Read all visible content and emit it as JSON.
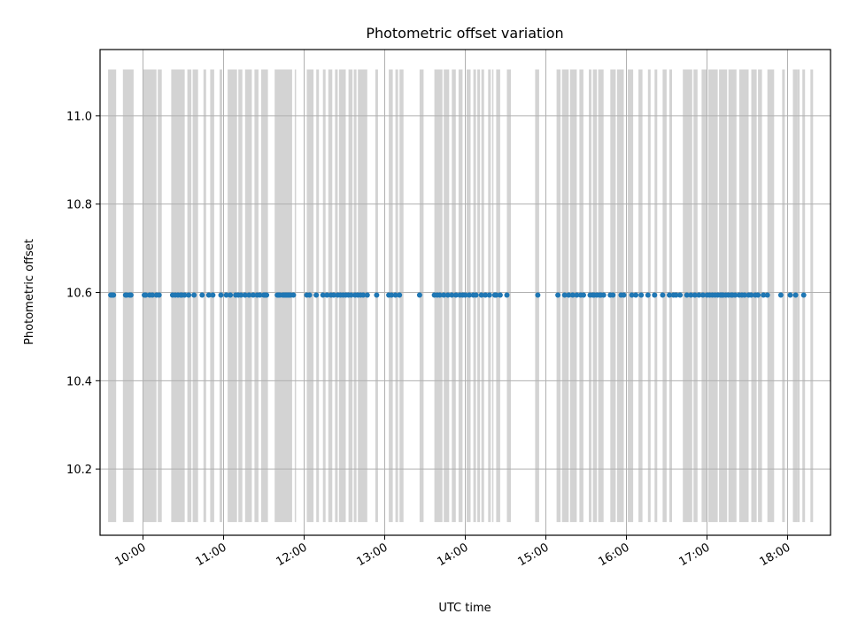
{
  "chart_data": {
    "type": "scatter",
    "title": "Photometric offset variation",
    "xlabel": "UTC time",
    "ylabel": "Photometric offset",
    "x_axis_type": "time",
    "xlim": [
      "09:28",
      "18:32"
    ],
    "ylim": [
      10.05,
      11.15
    ],
    "grid": true,
    "x_ticks": [
      "10:00",
      "11:00",
      "12:00",
      "13:00",
      "14:00",
      "15:00",
      "16:00",
      "17:00",
      "18:00"
    ],
    "y_ticks": [
      "10.2",
      "10.4",
      "10.6",
      "10.8",
      "11.0"
    ],
    "colors": {
      "points": "#1f77b4",
      "bands": "#d3d3d3",
      "grid": "#b0b0b0"
    },
    "bands_y_range": [
      10.08,
      11.105
    ],
    "bands": [
      [
        "09:34",
        "09:39"
      ],
      [
        "09:45",
        "09:53"
      ],
      [
        "10:00",
        "10:04"
      ],
      [
        "10:06",
        "10:09"
      ],
      [
        "10:11",
        "10:13"
      ],
      [
        "10:21",
        "10:23"
      ],
      [
        "10:25",
        "10:27"
      ],
      [
        "10:29",
        "10:31"
      ],
      [
        "10:33",
        "10:35"
      ],
      [
        "10:38",
        "10:40"
      ],
      [
        "10:44",
        "10:46"
      ],
      [
        "10:51",
        "10:53"
      ],
      [
        "10:57",
        "10:59"
      ],
      [
        "11:04",
        "11:06"
      ],
      [
        "11:09",
        "11:11"
      ],
      [
        "11:13",
        "11:16"
      ],
      [
        "11:18",
        "11:20"
      ],
      [
        "11:25",
        "11:27"
      ],
      [
        "11:29",
        "11:31"
      ],
      [
        "11:32",
        "11:34"
      ],
      [
        "11:37",
        "11:39"
      ],
      [
        "11:41",
        "11:43"
      ],
      [
        "11:45",
        "11:48"
      ],
      [
        "11:50",
        "11:52"
      ],
      [
        "11:59",
        "11:61"
      ],
      [
        "12:02",
        "12:04"
      ],
      [
        "12:06",
        "12:08"
      ],
      [
        "12:10",
        "12:12"
      ],
      [
        "12:14",
        "12:16"
      ],
      [
        "12:22",
        "12:24"
      ],
      [
        "12:26",
        "12:28"
      ],
      [
        "12:30",
        "12:32"
      ],
      [
        "12:33",
        "12:36"
      ],
      [
        "12:37",
        "12:39"
      ],
      [
        "12:42",
        "12:44"
      ],
      [
        "12:46",
        "12:48"
      ],
      [
        "13:03",
        "13:05"
      ],
      [
        "13:08",
        "13:10"
      ],
      [
        "13:12",
        "13:14"
      ],
      [
        "13:26",
        "13:28"
      ],
      [
        "13:33",
        "13:35"
      ],
      [
        "13:37",
        "13:39"
      ],
      [
        "13:41",
        "13:43"
      ],
      [
        "13:45",
        "13:47"
      ],
      [
        "13:50",
        "13:52"
      ],
      [
        "13:55",
        "13:57"
      ],
      [
        "14:01",
        "14:03"
      ],
      [
        "14:05",
        "14:07"
      ],
      [
        "14:09",
        "14:11"
      ],
      [
        "14:15",
        "14:17"
      ],
      [
        "14:21",
        "14:23"
      ],
      [
        "14:26",
        "14:28"
      ],
      [
        "14:33",
        "14:35"
      ],
      [
        "14:52",
        "14:54"
      ],
      [
        "15:09",
        "15:11"
      ],
      [
        "15:14",
        "15:16"
      ],
      [
        "15:18",
        "15:20"
      ],
      [
        "15:22",
        "15:24"
      ],
      [
        "15:28",
        "15:30"
      ],
      [
        "15:33",
        "15:35"
      ],
      [
        "15:39",
        "15:41"
      ],
      [
        "15:43",
        "15:45"
      ],
      [
        "15:51",
        "15:53"
      ],
      [
        "15:56",
        "15:58"
      ],
      [
        "16:03",
        "16:05"
      ],
      [
        "16:09",
        "16:11"
      ],
      [
        "16:15",
        "16:17"
      ],
      [
        "16:21",
        "16:23"
      ],
      [
        "16:26",
        "16:28"
      ],
      [
        "16:33",
        "16:35"
      ],
      [
        "16:43",
        "16:45"
      ],
      [
        "16:47",
        "16:49"
      ],
      [
        "16:51",
        "16:53"
      ],
      [
        "17:01",
        "17:03"
      ],
      [
        "17:05",
        "17:07"
      ],
      [
        "17:08",
        "17:10"
      ],
      [
        "17:12",
        "17:14"
      ],
      [
        "17:16",
        "17:18"
      ],
      [
        "17:20",
        "17:22"
      ],
      [
        "17:23",
        "17:25"
      ],
      [
        "17:27",
        "17:29"
      ],
      [
        "17:33",
        "17:35"
      ],
      [
        "17:39",
        "17:41"
      ],
      [
        "17:45",
        "17:47"
      ],
      [
        "17:59",
        "17:61"
      ]
    ],
    "bands_wide": [
      [
        "09:34",
        "09:40"
      ],
      [
        "09:45",
        "09:53"
      ],
      [
        "10:00",
        "10:10"
      ],
      [
        "10:11",
        "10:14"
      ],
      [
        "10:21",
        "10:31"
      ],
      [
        "10:33",
        "10:36"
      ],
      [
        "10:37",
        "10:41"
      ],
      [
        "10:45",
        "10:47"
      ],
      [
        "10:50",
        "10:53"
      ],
      [
        "10:57",
        "10:59"
      ],
      [
        "11:03",
        "11:10"
      ],
      [
        "11:11",
        "11:14"
      ],
      [
        "11:16",
        "11:21"
      ],
      [
        "11:23",
        "11:26"
      ],
      [
        "11:28",
        "11:33"
      ],
      [
        "11:38",
        "11:51"
      ],
      [
        "11:53",
        "11:54"
      ],
      [
        "12:02",
        "12:07"
      ],
      [
        "12:09",
        "12:11"
      ],
      [
        "12:14",
        "12:16"
      ],
      [
        "12:18",
        "12:21"
      ],
      [
        "12:23",
        "12:25"
      ],
      [
        "12:26",
        "12:31"
      ],
      [
        "12:33",
        "12:36"
      ],
      [
        "12:37",
        "12:39"
      ],
      [
        "12:40",
        "12:47"
      ],
      [
        "12:53",
        "12:55"
      ],
      [
        "13:03",
        "13:06"
      ],
      [
        "13:08",
        "13:10"
      ],
      [
        "13:11",
        "13:14"
      ],
      [
        "13:26",
        "13:29"
      ],
      [
        "13:37",
        "13:43"
      ],
      [
        "13:44",
        "13:48"
      ],
      [
        "13:50",
        "13:53"
      ],
      [
        "13:55",
        "13:58"
      ],
      [
        "14:01",
        "14:04"
      ],
      [
        "14:06",
        "14:08"
      ],
      [
        "14:09",
        "14:11"
      ],
      [
        "14:12",
        "14:14"
      ],
      [
        "14:17",
        "14:19"
      ],
      [
        "14:20",
        "14:21"
      ],
      [
        "14:23",
        "14:26"
      ],
      [
        "14:31",
        "14:34"
      ],
      [
        "14:52",
        "14:55"
      ],
      [
        "15:08",
        "15:11"
      ],
      [
        "15:12",
        "15:17"
      ],
      [
        "15:18",
        "15:23"
      ],
      [
        "15:25",
        "15:28"
      ],
      [
        "15:32",
        "15:34"
      ],
      [
        "15:35",
        "15:38"
      ],
      [
        "15:39",
        "15:43"
      ],
      [
        "15:48",
        "15:52"
      ],
      [
        "15:53",
        "15:58"
      ],
      [
        "16:01",
        "16:05"
      ],
      [
        "16:09",
        "16:12"
      ],
      [
        "16:16",
        "16:18"
      ],
      [
        "16:21",
        "16:23"
      ],
      [
        "16:27",
        "16:30"
      ],
      [
        "16:32",
        "16:34"
      ],
      [
        "16:42",
        "16:49"
      ],
      [
        "16:50",
        "16:53"
      ],
      [
        "16:56",
        "17:00"
      ],
      [
        "17:01",
        "17:08"
      ],
      [
        "17:09",
        "17:15"
      ],
      [
        "17:16",
        "17:22"
      ],
      [
        "17:24",
        "17:31"
      ],
      [
        "17:33",
        "17:37"
      ],
      [
        "17:38",
        "17:41"
      ],
      [
        "17:45",
        "17:50"
      ],
      [
        "17:56",
        "17:58"
      ],
      [
        "18:04",
        "18:07"
      ],
      [
        "18:07",
        "18:09"
      ],
      [
        "18:11",
        "18:13"
      ],
      [
        "18:17",
        "18:19"
      ]
    ],
    "points": {
      "y": 10.594,
      "x": [
        "09:36",
        "09:37",
        "09:38",
        "09:47",
        "09:48",
        "09:50",
        "09:51",
        "10:01",
        "10:02",
        "10:05",
        "10:07",
        "10:10",
        "10:12",
        "10:22",
        "10:24",
        "10:26",
        "10:28",
        "10:29",
        "10:31",
        "10:34",
        "10:38",
        "10:44",
        "10:49",
        "10:52",
        "10:58",
        "11:02",
        "11:05",
        "11:09",
        "11:11",
        "11:13",
        "11:16",
        "11:19",
        "11:22",
        "11:25",
        "11:27",
        "11:30",
        "11:31",
        "11:32",
        "11:40",
        "11:41",
        "11:42",
        "11:44",
        "11:45",
        "11:46",
        "11:47",
        "11:48",
        "11:49",
        "11:50",
        "11:52",
        "12:02",
        "12:04",
        "12:09",
        "12:14",
        "12:17",
        "12:20",
        "12:22",
        "12:25",
        "12:27",
        "12:29",
        "12:31",
        "12:33",
        "12:35",
        "12:38",
        "12:40",
        "12:42",
        "12:44",
        "12:47",
        "12:54",
        "13:03",
        "13:05",
        "13:08",
        "13:11",
        "13:26",
        "13:37",
        "13:39",
        "13:41",
        "13:44",
        "13:47",
        "13:50",
        "13:53",
        "13:56",
        "13:58",
        "14:00",
        "14:03",
        "14:06",
        "14:08",
        "14:12",
        "14:15",
        "14:18",
        "14:22",
        "14:23",
        "14:26",
        "14:31",
        "14:54",
        "15:09",
        "15:14",
        "15:17",
        "15:20",
        "15:23",
        "15:26",
        "15:28",
        "15:33",
        "15:35",
        "15:36",
        "15:38",
        "15:40",
        "15:41",
        "15:43",
        "15:48",
        "15:50",
        "15:56",
        "15:58",
        "16:04",
        "16:07",
        "16:11",
        "16:16",
        "16:21",
        "16:27",
        "16:32",
        "16:35",
        "16:37",
        "16:40",
        "16:45",
        "16:48",
        "16:51",
        "16:54",
        "16:57",
        "17:00",
        "17:02",
        "17:04",
        "17:06",
        "17:08",
        "17:10",
        "17:11",
        "17:12",
        "17:14",
        "17:16",
        "17:18",
        "17:19",
        "17:21",
        "17:24",
        "17:26",
        "17:28",
        "17:31",
        "17:33",
        "17:36",
        "17:38",
        "17:42",
        "17:45",
        "17:55",
        "18:02",
        "18:06",
        "18:12"
      ]
    }
  }
}
